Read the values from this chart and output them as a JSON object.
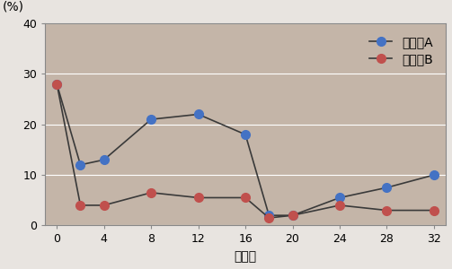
{
  "group_a_x": [
    0,
    2,
    4,
    8,
    12,
    16,
    18,
    20,
    24,
    28,
    32
  ],
  "group_a_y": [
    28,
    12,
    13,
    21,
    22,
    18,
    2,
    2,
    5.5,
    7.5,
    10
  ],
  "group_b_x": [
    0,
    2,
    4,
    8,
    12,
    16,
    18,
    20,
    24,
    28,
    32
  ],
  "group_b_y": [
    28,
    4,
    4,
    6.5,
    5.5,
    5.5,
    1.5,
    2,
    4,
    3,
    3
  ],
  "color_a": "#4472c4",
  "color_b": "#c0504d",
  "line_color": "#3a3a3a",
  "marker_size": 7,
  "xlabel": "週間後",
  "ylabel": "(%)",
  "legend_a": "グルーA",
  "legend_b": "グルーB",
  "xlim": [
    -1,
    33
  ],
  "ylim": [
    0,
    40
  ],
  "xticks": [
    0,
    4,
    8,
    12,
    16,
    20,
    24,
    28,
    32
  ],
  "yticks": [
    0,
    10,
    20,
    30,
    40
  ],
  "background_color": "#c4b5a8",
  "outer_background": "#e8e4e0",
  "title_fontsize": 10,
  "axis_fontsize": 10,
  "legend_fontsize": 10
}
